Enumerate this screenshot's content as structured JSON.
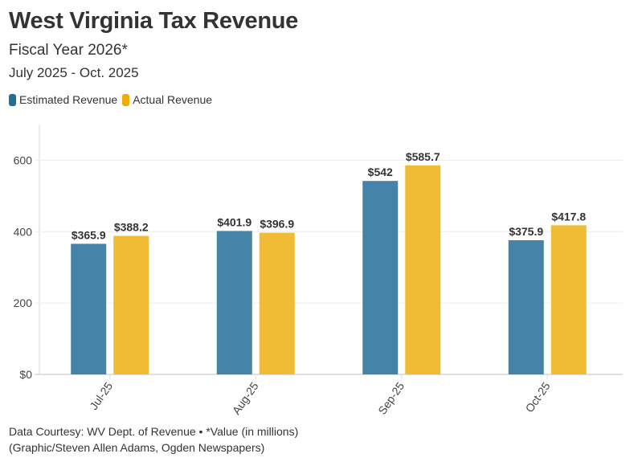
{
  "header": {
    "title": "West Virginia Tax Revenue",
    "subtitle": "Fiscal Year 2026*",
    "date_range": "July 2025 - Oct. 2025"
  },
  "footer": {
    "source": "Data Courtesy: WV Dept. of Revenue • *Value (in millions)",
    "credit": "(Graphic/Steven Allen Adams, Ogden Newspapers)"
  },
  "chart_data": {
    "type": "bar",
    "categories": [
      "Jul-25",
      "Aug-25",
      "Sep-25",
      "Oct-25"
    ],
    "series": [
      {
        "name": "Estimated Revenue",
        "color": "#1f6f9a",
        "bar_color": "#4683a9",
        "values": [
          365.9,
          401.9,
          542,
          375.9
        ],
        "labels": [
          "$365.9",
          "$401.9",
          "$542",
          "$375.9"
        ]
      },
      {
        "name": "Actual Revenue",
        "color": "#f0ad00",
        "bar_color": "#f0bb35",
        "values": [
          388.2,
          396.9,
          585.7,
          417.8
        ],
        "labels": [
          "$388.2",
          "$396.9",
          "$585.7",
          "$417.8"
        ]
      }
    ],
    "yticks": [
      0,
      200,
      400,
      600
    ],
    "ytick_labels": [
      "$0",
      "200",
      "400",
      "600"
    ],
    "ylim": [
      0,
      700
    ],
    "grid": true,
    "legend": "top-left",
    "xlabel": "",
    "ylabel": ""
  }
}
